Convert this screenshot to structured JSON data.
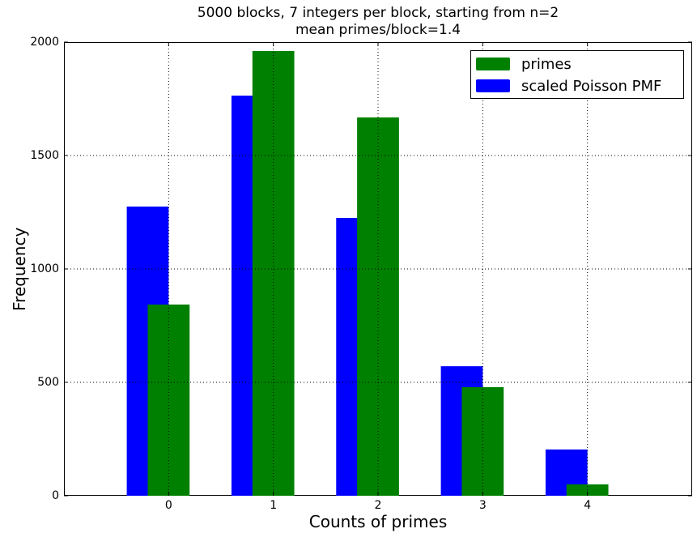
{
  "chart_data": {
    "type": "bar",
    "title": "5000 blocks, 7 integers per block, starting from n=2",
    "subtitle": "mean primes/block=1.4",
    "xlabel": "Counts of primes",
    "ylabel": "Frequency",
    "categories": [
      "0",
      "1",
      "2",
      "3",
      "4"
    ],
    "x": [
      0,
      1,
      2,
      3,
      4
    ],
    "series": [
      {
        "name": "primes",
        "color": "#008000",
        "values": [
          843,
          1961,
          1668,
          479,
          50
        ],
        "offset_left": -0.2,
        "width": 0.4
      },
      {
        "name": "scaled Poisson PMF",
        "color": "#0000ff",
        "values": [
          1275,
          1764,
          1225,
          571,
          204
        ],
        "offset_left": -0.4,
        "width": 0.4
      }
    ],
    "xlim": [
      -1,
      5
    ],
    "ylim": [
      0,
      2000
    ],
    "xticks": [
      "0",
      "1",
      "2",
      "3",
      "4"
    ],
    "yticks": [
      "0",
      "500",
      "1000",
      "1500",
      "2000"
    ],
    "grid": true,
    "legend_position": "upper right"
  },
  "legend": [
    {
      "label": "primes",
      "color": "#008000"
    },
    {
      "label": "scaled Poisson PMF",
      "color": "#0000ff"
    }
  ]
}
